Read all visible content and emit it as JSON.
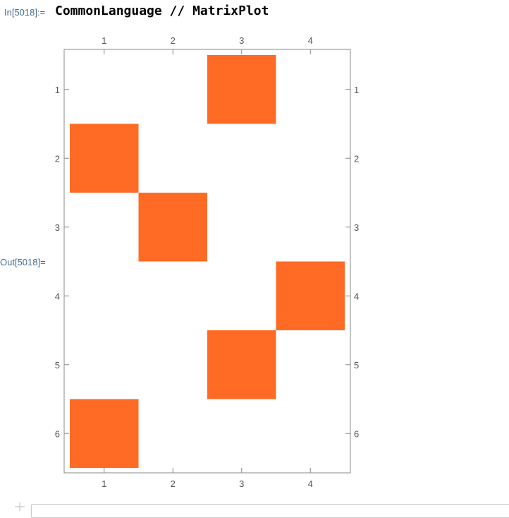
{
  "notebook": {
    "input_label": "In[5018]:=",
    "input_code": "CommonLanguage // MatrixPlot",
    "output_label": "Out[5018]="
  },
  "chart_data": {
    "type": "heatmap",
    "rows": 6,
    "cols": 4,
    "x_ticks": [
      "1",
      "2",
      "3",
      "4"
    ],
    "y_ticks": [
      "1",
      "2",
      "3",
      "4",
      "5",
      "6"
    ],
    "filled_cells": [
      {
        "row": 1,
        "col": 3
      },
      {
        "row": 2,
        "col": 1
      },
      {
        "row": 3,
        "col": 2
      },
      {
        "row": 4,
        "col": 4
      },
      {
        "row": 5,
        "col": 3
      },
      {
        "row": 6,
        "col": 1
      }
    ],
    "fill_color": "#ff6b24",
    "frame_color": "#888888",
    "tick_color": "#555555"
  }
}
